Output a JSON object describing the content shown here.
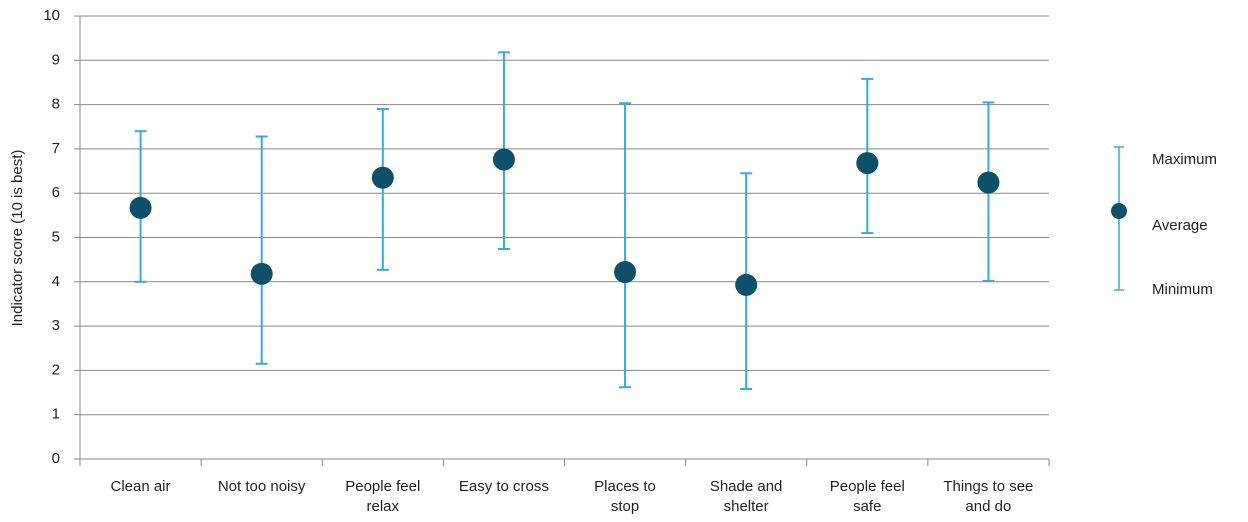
{
  "chart_data": {
    "type": "error-dot",
    "y_label": "Indicator score (10 is best)",
    "categories": [
      "Clean air",
      "Not too noisy",
      "People feel\nrelax",
      "Easy to cross",
      "Places to\nstop",
      "Shade and\nshelter",
      "People feel\nsafe",
      "Things to see\nand do"
    ],
    "series": [
      {
        "name": "Maximum",
        "color": "#3aa8d8",
        "values": [
          7.4,
          7.28,
          7.9,
          9.18,
          8.03,
          6.45,
          8.58,
          8.05
        ]
      },
      {
        "name": "Average",
        "color": "#0e4f6a",
        "values": [
          5.67,
          4.18,
          6.35,
          6.76,
          4.22,
          3.93,
          6.68,
          6.24
        ]
      },
      {
        "name": "Minimum",
        "color": "#3aa8d8",
        "values": [
          4.0,
          2.15,
          4.27,
          4.74,
          1.62,
          1.58,
          5.1,
          4.02
        ]
      }
    ],
    "ylim": [
      0,
      10
    ],
    "yticks": [
      0,
      1,
      2,
      3,
      4,
      5,
      6,
      7,
      8,
      9,
      10
    ],
    "grid": true
  }
}
